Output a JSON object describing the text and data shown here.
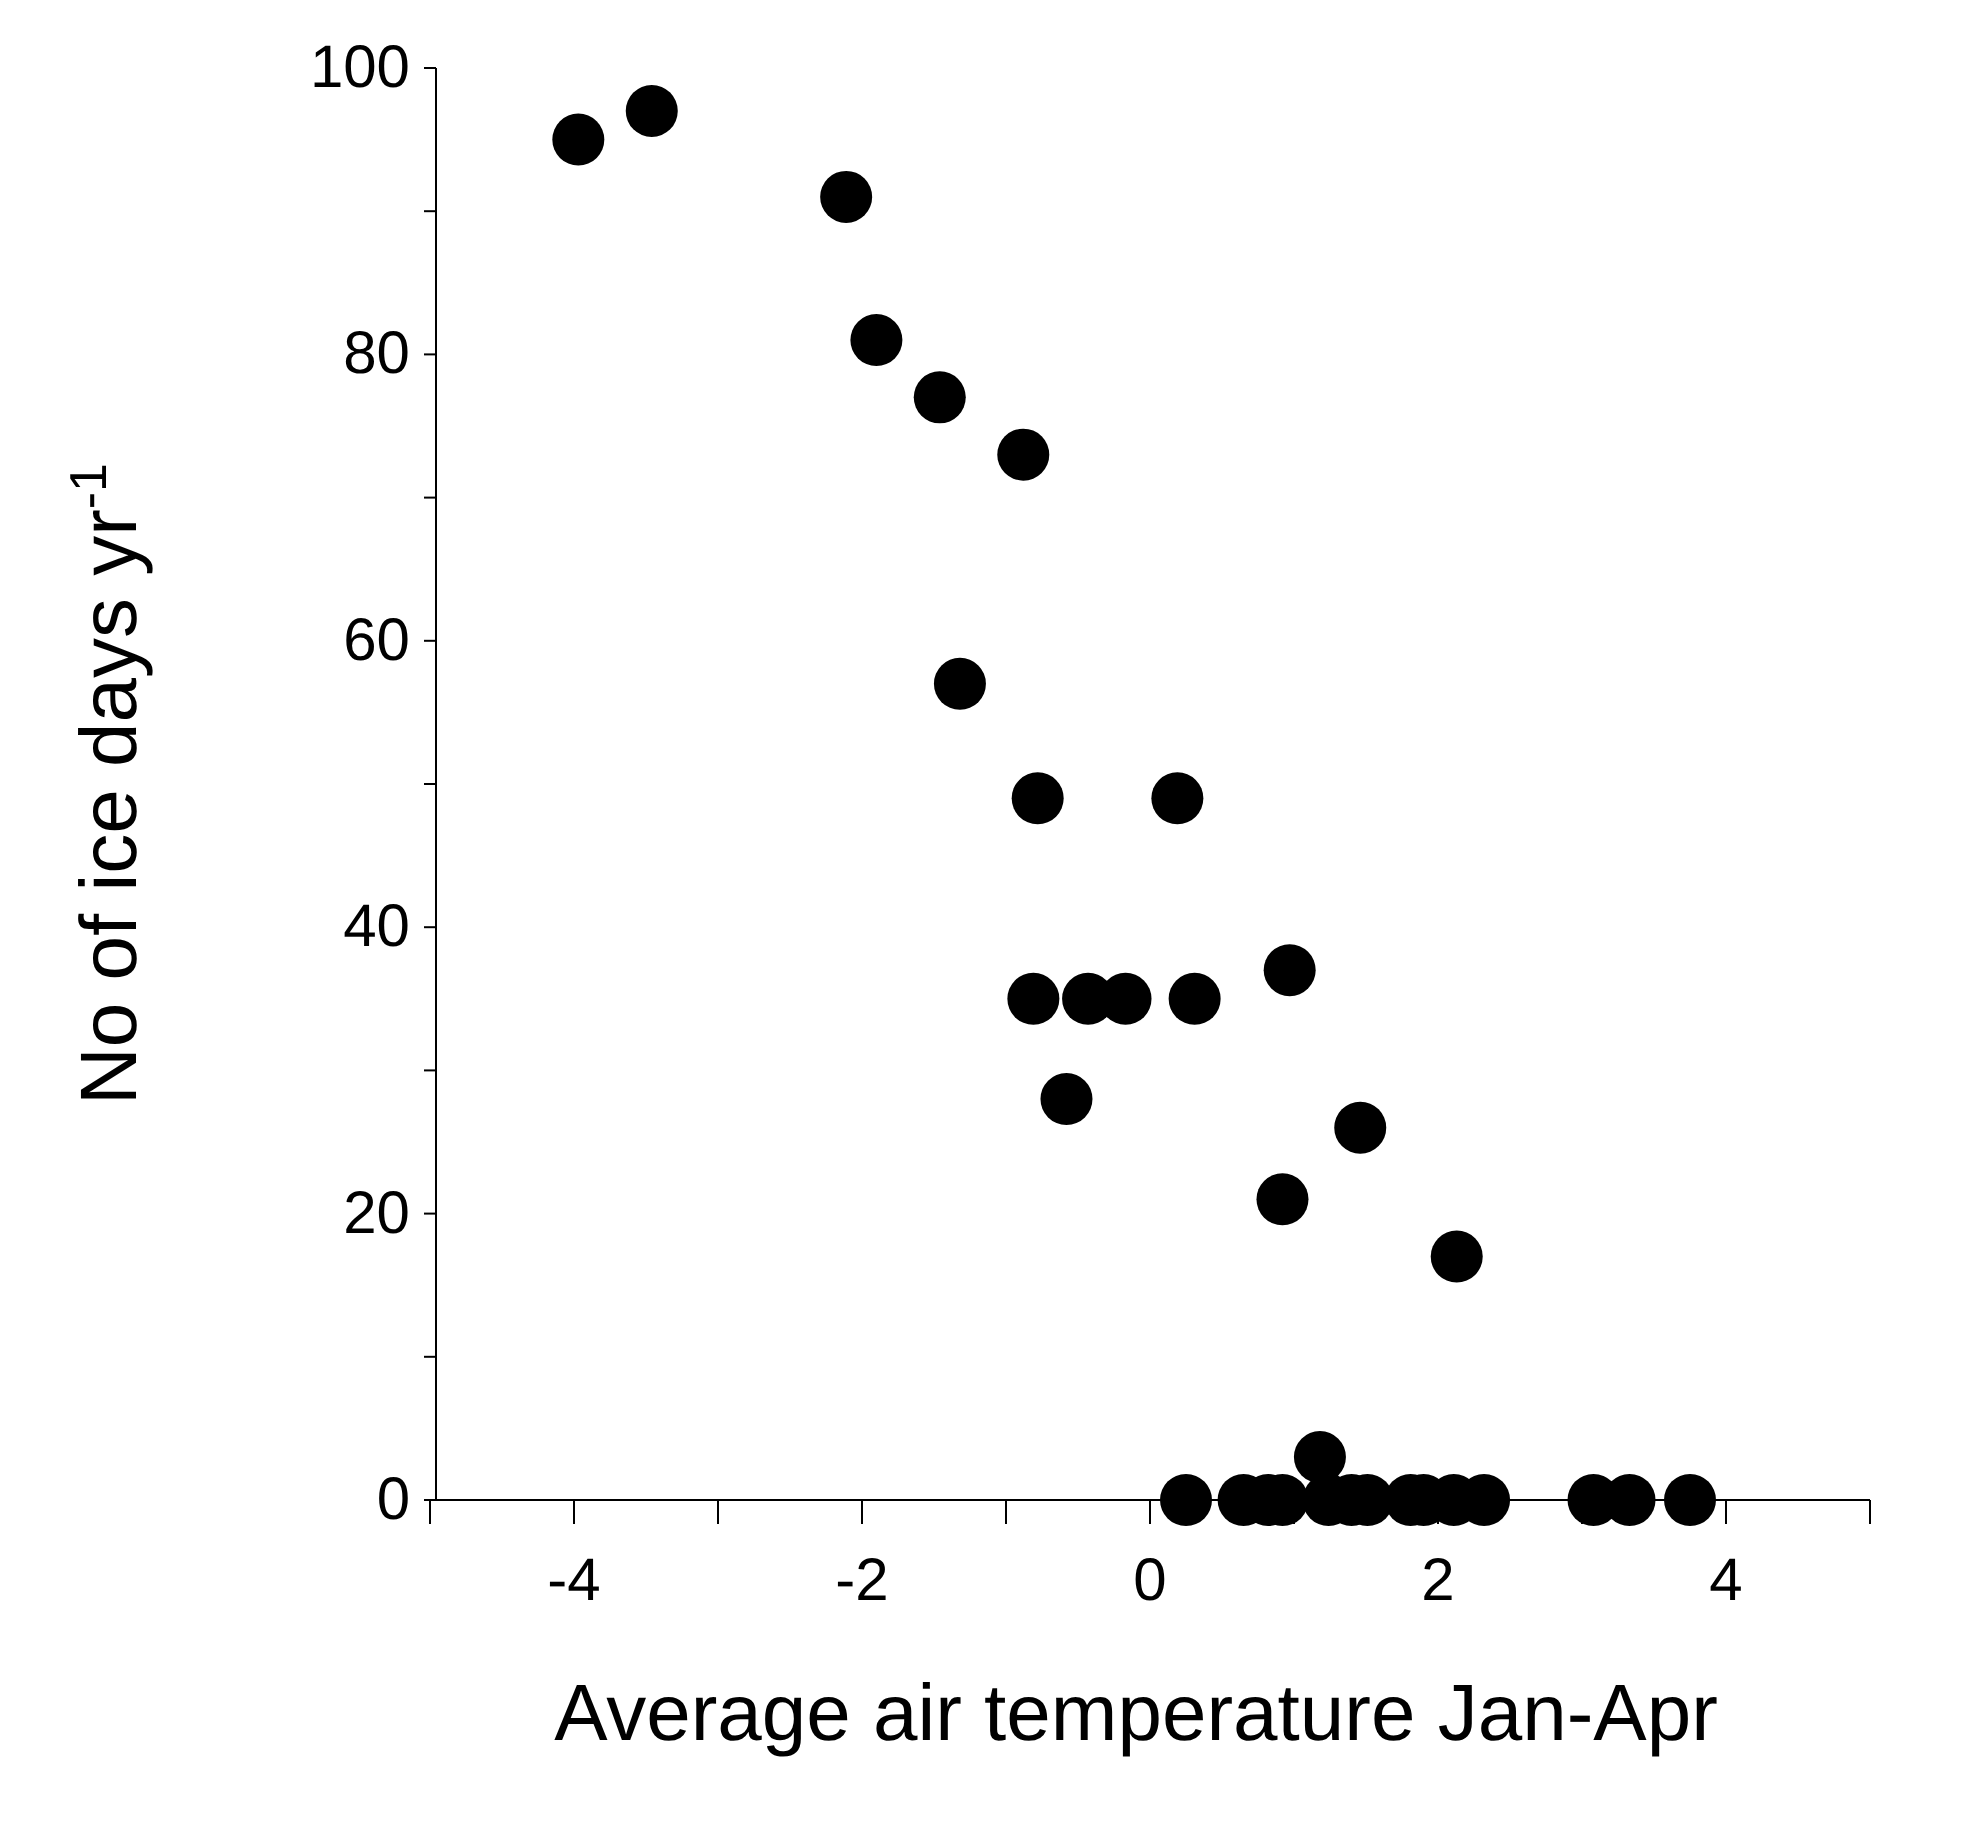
{
  "chart_data": {
    "type": "scatter",
    "xlabel": "Average air temperature Jan-Apr",
    "ylabel": "No of ice days yr$^{-1}$",
    "marker": "circle",
    "grid": false,
    "xlim": [
      -5,
      5
    ],
    "xticks": [
      {
        "value": -5,
        "label": null
      },
      -4,
      {
        "value": -3,
        "label": null
      },
      -2,
      {
        "value": -1,
        "label": null
      },
      0,
      {
        "value": 1,
        "label": null
      },
      2,
      {
        "value": 3,
        "label": null
      },
      4,
      {
        "value": 5,
        "label": null
      }
    ],
    "ylim": [
      0,
      100
    ],
    "yticks": [
      0,
      {
        "value": 10,
        "label": null
      },
      20,
      {
        "value": 30,
        "label": null
      },
      40,
      {
        "value": 50,
        "label": null
      },
      60,
      {
        "value": 70,
        "label": null
      },
      80,
      {
        "value": 90,
        "label": null
      },
      100
    ],
    "series": [
      {
        "color": "#000000",
        "x": [
          -3.97,
          -3.46,
          -2.11,
          -1.9,
          -1.46,
          -0.88,
          -1.32,
          -0.78,
          0.19,
          -0.81,
          -0.43,
          -0.17,
          0.31,
          -0.58,
          0.97,
          1.46,
          0.92,
          2.13,
          1.18,
          0.25,
          0.65,
          0.82,
          0.92,
          1.24,
          1.4,
          1.51,
          1.81,
          1.9,
          2.11,
          2.32,
          3.08,
          3.33,
          3.75
        ],
        "values": [
          95,
          97,
          91,
          81,
          77,
          73,
          57,
          49,
          49,
          35,
          35,
          35,
          35,
          28,
          37,
          26,
          21,
          17,
          3,
          0,
          0,
          0,
          0,
          0,
          0,
          0,
          0,
          0,
          0,
          0,
          0,
          0,
          0
        ]
      }
    ]
  }
}
